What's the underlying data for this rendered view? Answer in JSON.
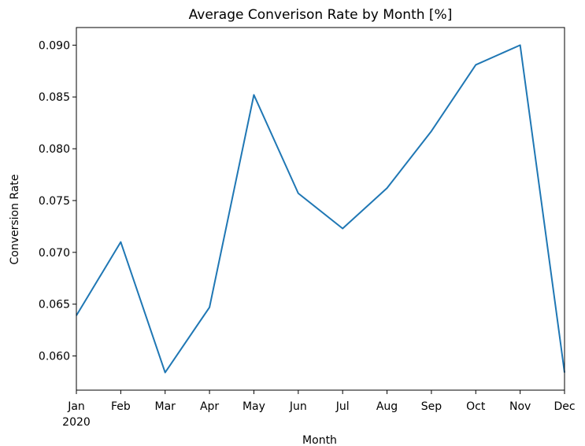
{
  "chart_data": {
    "type": "line",
    "title": "Average Converison Rate by Month [%]",
    "xlabel": "Month",
    "ylabel": "Conversion Rate",
    "year_label": "2020",
    "categories": [
      "Jan",
      "Feb",
      "Mar",
      "Apr",
      "May",
      "Jun",
      "Jul",
      "Aug",
      "Sep",
      "Oct",
      "Nov",
      "Dec"
    ],
    "series": [
      {
        "values": [
          0.0639,
          0.071,
          0.0584,
          0.0647,
          0.0852,
          0.0757,
          0.0723,
          0.0762,
          0.0817,
          0.0881,
          0.09,
          0.0584
        ],
        "color": "#1f77b4"
      }
    ],
    "ylim": [
      0.0567,
      0.0917
    ],
    "yticks": [
      0.06,
      0.065,
      0.07,
      0.075,
      0.08,
      0.085,
      0.09
    ],
    "ytick_labels": [
      "0.060",
      "0.065",
      "0.070",
      "0.075",
      "0.080",
      "0.085",
      "0.090"
    ],
    "grid": false,
    "legend": "none"
  }
}
